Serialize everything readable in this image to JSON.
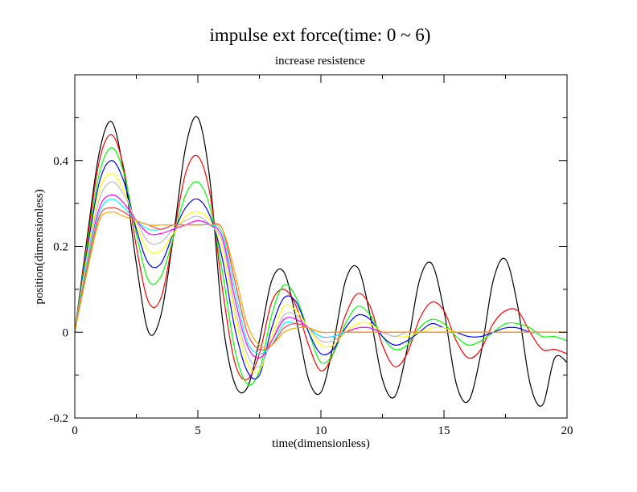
{
  "chart_data": {
    "type": "line",
    "title": "impulse ext force(time: 0 ~ 6)",
    "subtitle": "increase resistence",
    "xlabel": "time(dimensionless)",
    "ylabel": "position(dimensionless)",
    "xlim": [
      0,
      20
    ],
    "ylim": [
      -0.2,
      0.6
    ],
    "x_ticks": [
      0,
      5,
      10,
      15,
      20
    ],
    "x_tick_labels": [
      "0",
      "5",
      "10",
      "15",
      "20"
    ],
    "y_ticks": [
      -0.2,
      0,
      0.2,
      0.4
    ],
    "y_tick_labels": [
      "-0.2",
      "0",
      "0.2",
      "0.4"
    ],
    "grid": false,
    "legend": "none",
    "series": [
      {
        "color": "#000000",
        "x": [
          0,
          0.5,
          1,
          1.5,
          2,
          2.5,
          3,
          3.5,
          4,
          4.5,
          5,
          5.5,
          6,
          6.5,
          7,
          7.5,
          8,
          8.5,
          9,
          9.5,
          10,
          10.5,
          11,
          11.5,
          12,
          12.5,
          13,
          13.5,
          14,
          14.5,
          15,
          15.5,
          16,
          16.5,
          17,
          17.5,
          18,
          18.5,
          19,
          19.5,
          20
        ],
        "y": [
          0,
          0.22,
          0.42,
          0.49,
          0.37,
          0.16,
          0.0,
          0.04,
          0.22,
          0.43,
          0.5,
          0.35,
          0.03,
          -0.12,
          -0.13,
          -0.02,
          0.12,
          0.14,
          0.03,
          -0.11,
          -0.14,
          -0.03,
          0.12,
          0.15,
          0.04,
          -0.11,
          -0.15,
          -0.04,
          0.12,
          0.16,
          0.05,
          -0.12,
          -0.16,
          -0.05,
          0.12,
          0.17,
          0.06,
          -0.12,
          -0.17,
          -0.06,
          -0.07
        ]
      },
      {
        "color": "#ff0000",
        "x": [
          0,
          0.5,
          1,
          1.5,
          2,
          2.5,
          3,
          3.5,
          4,
          4.5,
          5,
          5.5,
          6,
          6.5,
          7,
          7.5,
          8,
          8.5,
          9,
          9.5,
          10,
          10.5,
          11,
          11.5,
          12,
          12.5,
          13,
          13.5,
          14,
          14.5,
          15,
          15.5,
          16,
          16.5,
          17,
          17.5,
          18,
          18.5,
          19,
          19.5,
          20
        ],
        "y": [
          0,
          0.21,
          0.4,
          0.46,
          0.38,
          0.2,
          0.07,
          0.08,
          0.22,
          0.37,
          0.41,
          0.32,
          0.1,
          -0.07,
          -0.11,
          -0.05,
          0.07,
          0.1,
          0.06,
          -0.03,
          -0.09,
          -0.05,
          0.04,
          0.09,
          0.06,
          -0.03,
          -0.08,
          -0.05,
          0.03,
          0.07,
          0.05,
          -0.02,
          -0.06,
          -0.04,
          0.02,
          0.05,
          0.05,
          0,
          -0.04,
          -0.04,
          -0.05
        ]
      },
      {
        "color": "#00ff00",
        "x": [
          0,
          0.5,
          1,
          1.5,
          2,
          2.5,
          3,
          3.5,
          4,
          4.5,
          5,
          5.5,
          6,
          6.5,
          7,
          7.5,
          8,
          8.5,
          9,
          9.5,
          10,
          10.5,
          11,
          11.5,
          12,
          12.5,
          13,
          13.5,
          14,
          14.5,
          15,
          15.5,
          16,
          16.5,
          17,
          17.5,
          18,
          18.5,
          19,
          19.5,
          20
        ],
        "y": [
          0,
          0.2,
          0.37,
          0.43,
          0.37,
          0.23,
          0.12,
          0.13,
          0.22,
          0.32,
          0.35,
          0.29,
          0.14,
          -0.04,
          -0.12,
          -0.09,
          0.04,
          0.11,
          0.08,
          0.0,
          -0.07,
          -0.05,
          0.02,
          0.06,
          0.04,
          -0.01,
          -0.04,
          -0.03,
          0.01,
          0.03,
          0.02,
          -0.01,
          -0.03,
          -0.02,
          0.0,
          0.02,
          0.02,
          0.01,
          -0.01,
          -0.01,
          -0.02
        ]
      },
      {
        "color": "#0000ff",
        "x": [
          0,
          0.5,
          1,
          1.5,
          2,
          2.5,
          3,
          3.5,
          4,
          4.5,
          5,
          5.5,
          6,
          6.5,
          7,
          7.5,
          8,
          8.5,
          9,
          9.5,
          10,
          10.5,
          11,
          11.5,
          12,
          12.5,
          13,
          13.5,
          14,
          14.5,
          15,
          15.5,
          16,
          16.5,
          17,
          17.5,
          18,
          18.5,
          19,
          19.5,
          20
        ],
        "y": [
          0,
          0.19,
          0.35,
          0.4,
          0.35,
          0.24,
          0.16,
          0.16,
          0.23,
          0.29,
          0.31,
          0.27,
          0.17,
          0.01,
          -0.09,
          -0.1,
          0.01,
          0.08,
          0.07,
          0.0,
          -0.05,
          -0.04,
          0.01,
          0.04,
          0.03,
          -0.01,
          -0.03,
          -0.02,
          0.0,
          0.02,
          0.01,
          0.0,
          -0.01,
          -0.01,
          0.0,
          0.01,
          0.01,
          0.0,
          0.0,
          0.0,
          0.0
        ]
      },
      {
        "color": "#ffff00",
        "x": [
          0,
          0.5,
          1,
          1.5,
          2,
          2.5,
          3,
          3.5,
          4,
          4.5,
          5,
          5.5,
          6,
          6.5,
          7,
          7.5,
          8,
          8.5,
          9,
          9.5,
          10,
          10.5,
          11,
          11.5,
          12,
          12.5,
          13,
          13.5,
          14,
          14.5,
          15,
          15.5,
          16,
          16.5,
          17,
          17.5,
          18,
          18.5,
          19,
          19.5,
          20
        ],
        "y": [
          0,
          0.18,
          0.33,
          0.37,
          0.33,
          0.25,
          0.19,
          0.19,
          0.23,
          0.27,
          0.28,
          0.26,
          0.19,
          0.04,
          -0.07,
          -0.09,
          -0.01,
          0.06,
          0.05,
          0.01,
          -0.03,
          -0.03,
          0.0,
          0.02,
          0.02,
          0.0,
          -0.01,
          -0.01,
          0.0,
          0.01,
          0.01,
          0.0,
          0.0,
          0.0,
          0.0,
          0.0,
          0.0,
          0.0,
          0.0,
          0.0,
          0.0
        ]
      },
      {
        "color": "#bbbbbb",
        "x": [
          0,
          0.5,
          1,
          1.5,
          2,
          2.5,
          3,
          3.5,
          4,
          4.5,
          5,
          5.5,
          6,
          6.5,
          7,
          7.5,
          8,
          8.5,
          9,
          9.5,
          10,
          10.5,
          11,
          11.5,
          12,
          12.5,
          13,
          13.5,
          14,
          14.5,
          15,
          15.5,
          16,
          16.5,
          17,
          17.5,
          18,
          18.5,
          19,
          19.5,
          20
        ],
        "y": [
          0,
          0.17,
          0.31,
          0.35,
          0.32,
          0.26,
          0.21,
          0.21,
          0.24,
          0.26,
          0.27,
          0.25,
          0.21,
          0.06,
          -0.05,
          -0.08,
          -0.02,
          0.04,
          0.04,
          0.01,
          -0.02,
          -0.02,
          0.0,
          0.01,
          0.01,
          0.0,
          -0.01,
          0.0,
          0.0,
          0.0,
          0.0,
          0.0,
          0.0,
          0.0,
          0.0,
          0.0,
          0.0,
          0.0,
          0.0,
          0.0,
          0.0
        ]
      },
      {
        "color": "#ff00ff",
        "x": [
          0,
          0.5,
          1,
          1.5,
          2,
          2.5,
          3,
          3.5,
          4,
          4.5,
          5,
          5.5,
          6,
          6.5,
          7,
          7.5,
          8,
          8.5,
          9,
          9.5,
          10,
          10.5,
          11,
          11.5,
          12,
          12.5,
          13,
          13.5,
          14,
          14.5,
          15,
          15.5,
          16,
          16.5,
          17,
          17.5,
          18,
          18.5,
          19,
          19.5,
          20
        ],
        "y": [
          0,
          0.16,
          0.29,
          0.32,
          0.3,
          0.26,
          0.23,
          0.23,
          0.24,
          0.25,
          0.26,
          0.25,
          0.22,
          0.08,
          -0.03,
          -0.06,
          -0.02,
          0.03,
          0.03,
          0.01,
          -0.01,
          -0.01,
          0.0,
          0.01,
          0.01,
          0.0,
          0.0,
          0.0,
          0.0,
          0.0,
          0.0,
          0.0,
          0.0,
          0.0,
          0.0,
          0.0,
          0.0,
          0.0,
          0.0,
          0.0,
          0.0
        ]
      },
      {
        "color": "#00ffff",
        "x": [
          0,
          0.5,
          1,
          1.5,
          2,
          2.5,
          3,
          3.5,
          4,
          4.5,
          5,
          5.5,
          6,
          6.5,
          7,
          7.5,
          8,
          8.5,
          9,
          9.5,
          10,
          10.5,
          11,
          11.5,
          12,
          12.5,
          13,
          13.5,
          14,
          14.5,
          15,
          15.5,
          16,
          16.5,
          17,
          17.5,
          18,
          18.5,
          19,
          19.5,
          20
        ],
        "y": [
          0,
          0.16,
          0.28,
          0.31,
          0.29,
          0.26,
          0.24,
          0.24,
          0.25,
          0.25,
          0.25,
          0.25,
          0.23,
          0.1,
          -0.02,
          -0.05,
          -0.03,
          0.02,
          0.02,
          0.01,
          -0.01,
          -0.01,
          0.0,
          0.0,
          0.0,
          0.0,
          0.0,
          0.0,
          0.0,
          0.0,
          0.0,
          0.0,
          0.0,
          0.0,
          0.0,
          0.0,
          0.0,
          0.0,
          0.0,
          0.0,
          0.0
        ]
      },
      {
        "color": "#ff4040",
        "x": [
          0,
          0.5,
          1,
          1.5,
          2,
          2.5,
          3,
          3.5,
          4,
          4.5,
          5,
          5.5,
          6,
          6.5,
          7,
          7.5,
          8,
          8.5,
          9,
          9.5,
          10,
          10.5,
          11,
          11.5,
          12,
          12.5,
          13,
          13.5,
          14,
          14.5,
          15,
          15.5,
          16,
          16.5,
          17,
          17.5,
          18,
          18.5,
          19,
          19.5,
          20
        ],
        "y": [
          0,
          0.15,
          0.27,
          0.29,
          0.28,
          0.26,
          0.25,
          0.24,
          0.25,
          0.25,
          0.25,
          0.25,
          0.24,
          0.12,
          0.0,
          -0.04,
          -0.03,
          0.01,
          0.02,
          0.01,
          0.0,
          0.0,
          0.0,
          0.0,
          0.0,
          0.0,
          0.0,
          0.0,
          0.0,
          0.0,
          0.0,
          0.0,
          0.0,
          0.0,
          0.0,
          0.0,
          0.0,
          0.0,
          0.0,
          0.0,
          0.0
        ]
      },
      {
        "color": "#ffa500",
        "x": [
          0,
          0.5,
          1,
          1.5,
          2,
          2.5,
          3,
          3.5,
          4,
          4.5,
          5,
          5.5,
          6,
          6.5,
          7,
          7.5,
          8,
          8.5,
          9,
          9.5,
          10,
          10.5,
          11,
          11.5,
          12,
          12.5,
          13,
          13.5,
          14,
          14.5,
          15,
          15.5,
          16,
          16.5,
          17,
          17.5,
          18,
          18.5,
          19,
          19.5,
          20
        ],
        "y": [
          0,
          0.14,
          0.26,
          0.28,
          0.27,
          0.26,
          0.25,
          0.25,
          0.25,
          0.25,
          0.25,
          0.25,
          0.24,
          0.14,
          0.02,
          -0.03,
          -0.03,
          0.0,
          0.01,
          0.01,
          0.0,
          0.0,
          0.0,
          0.0,
          0.0,
          0.0,
          0.0,
          0.0,
          0.0,
          0.0,
          0.0,
          0.0,
          0.0,
          0.0,
          0.0,
          0.0,
          0.0,
          0.0,
          0.0,
          0.0,
          0.0
        ]
      }
    ]
  }
}
